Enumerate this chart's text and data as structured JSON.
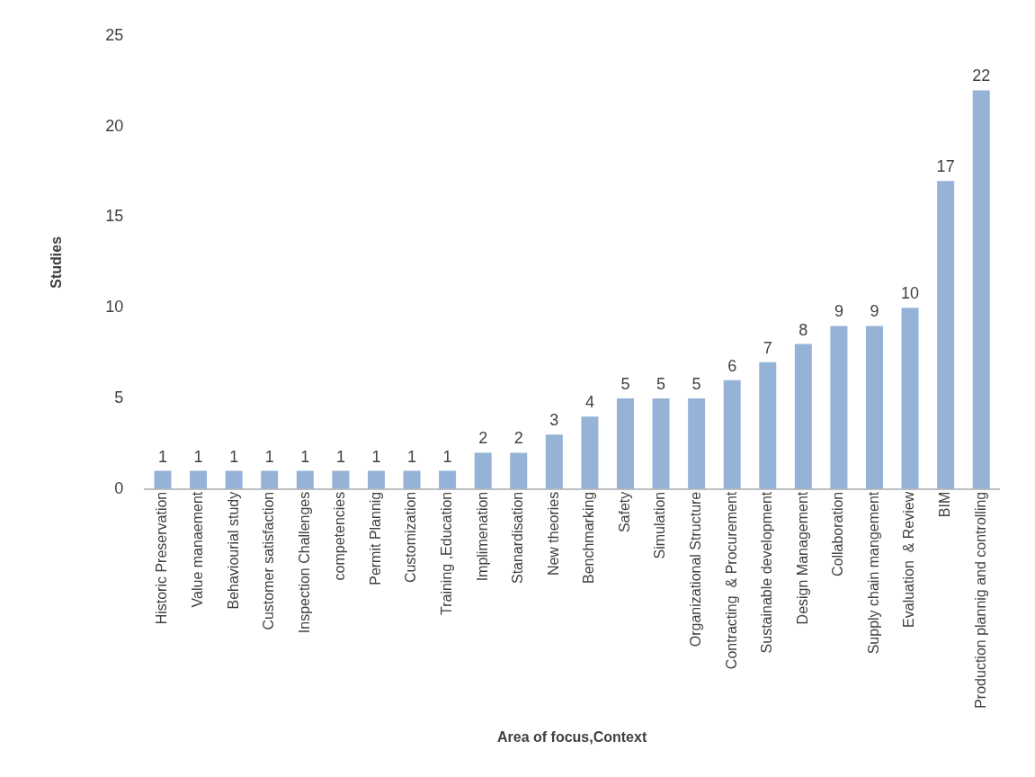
{
  "chart_data": {
    "type": "bar",
    "xlabel": "Area of focus,Context",
    "ylabel": "Studies",
    "categories": [
      "Historic Preservation",
      "Value manaement",
      "Behaviourial study",
      "Customer satisfaction",
      "Inspection Challenges",
      "competencies",
      "Permit Plannig",
      "Customization",
      "Training ,Education",
      "Implimenation",
      "Stanardisation",
      "New theories",
      "Benchmarking",
      "Safety",
      "Simulation",
      "Organizational Structure",
      "Contracting  & Procurement",
      "Sustainable development",
      "Design Management",
      "Collaboration",
      "Supply chain mangement",
      "Evaluation  & Review",
      "BIM",
      "Production plannig and controlling"
    ],
    "values": [
      1,
      1,
      1,
      1,
      1,
      1,
      1,
      1,
      1,
      2,
      2,
      3,
      4,
      5,
      5,
      5,
      6,
      7,
      8,
      9,
      9,
      10,
      17,
      22
    ],
    "color": "#95b3d7",
    "ylim": [
      0,
      25
    ],
    "yticks": [
      0,
      5,
      10,
      15,
      20,
      25
    ],
    "grid": false,
    "data_labels": true
  }
}
